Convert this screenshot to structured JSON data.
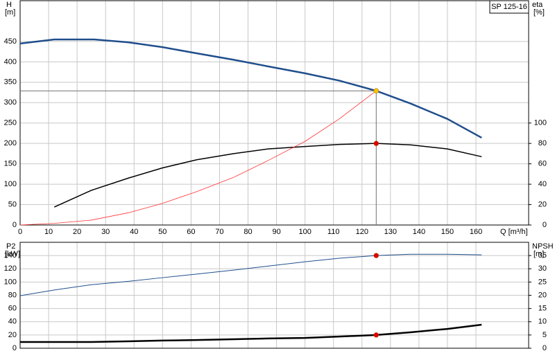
{
  "chart_data": [
    {
      "type": "line",
      "label": "SP 125-16",
      "ylabel": "H",
      "yunit": "[m]",
      "y2label": "eta",
      "y2unit": "[%]",
      "xlabel": "Q [m³/h]",
      "xlim": [
        0,
        178.5
      ],
      "xticks": [
        0,
        10,
        20,
        30,
        40,
        50,
        60,
        70,
        80,
        90,
        100,
        110,
        120,
        130,
        140,
        150,
        160
      ],
      "ylim": [
        0,
        550
      ],
      "yticks": [
        0,
        50,
        100,
        150,
        200,
        250,
        300,
        350,
        400,
        450
      ],
      "y2lim": [
        0,
        220
      ],
      "y2ticks": [
        0,
        20,
        40,
        60,
        80,
        100
      ],
      "grid": true,
      "series": [
        {
          "color": "#1f4e8c",
          "line_width": 2.5,
          "x": [
            0,
            12,
            26,
            38,
            50,
            62,
            75,
            87,
            100,
            112,
            125,
            137,
            150,
            162
          ],
          "values": [
            445,
            455,
            455,
            448,
            436,
            421,
            405,
            389,
            372,
            354,
            329,
            298,
            260,
            214
          ]
        },
        {
          "color": "#000000",
          "line_width": 1.5,
          "axis": "y2",
          "x": [
            12,
            25,
            38,
            50,
            62,
            75,
            87,
            100,
            112,
            125,
            137,
            150,
            162
          ],
          "values": [
            17.6,
            34,
            46,
            56,
            64,
            70,
            74.6,
            77,
            79,
            80,
            78.6,
            74.6,
            67
          ]
        },
        {
          "color": "#ff3030",
          "line_width": 0.8,
          "x": [
            0,
            12,
            25,
            38,
            50,
            62,
            75,
            87,
            100,
            112,
            125
          ],
          "values": [
            0,
            4,
            12,
            30,
            53,
            82,
            117,
            158,
            205,
            260,
            329
          ]
        }
      ],
      "markers": [
        {
          "x": 125,
          "y": 329,
          "color": "#f5c400",
          "guides": true
        },
        {
          "x": 125,
          "y": 80,
          "axis": "y2",
          "color": "#e00000"
        }
      ]
    },
    {
      "type": "line",
      "ylabel": "P2",
      "yunit": "[kW]",
      "y2label": "NPSH",
      "y2unit": "[m]",
      "xlim": [
        0,
        178.5
      ],
      "xticks": [
        0,
        10,
        20,
        30,
        40,
        50,
        60,
        70,
        80,
        90,
        100,
        110,
        120,
        130,
        140,
        150,
        160
      ],
      "ylim": [
        0,
        160
      ],
      "yticks": [
        0,
        20,
        40,
        60,
        80,
        100,
        120,
        140
      ],
      "y2lim": [
        0,
        40
      ],
      "y2ticks": [
        0,
        5,
        10,
        15,
        20,
        25,
        30,
        35
      ],
      "grid": true,
      "series": [
        {
          "color": "#1f4e8c",
          "line_width": 1,
          "x": [
            0,
            12,
            25,
            38,
            50,
            62,
            75,
            87,
            100,
            112,
            125,
            137,
            150,
            162
          ],
          "values": [
            79.4,
            88,
            96,
            101,
            106.6,
            112,
            118,
            124,
            130.6,
            136,
            140,
            142,
            142,
            141
          ]
        },
        {
          "color": "#000000",
          "line_width": 2.5,
          "axis": "y2",
          "x": [
            0,
            12,
            25,
            38,
            50,
            62,
            75,
            87,
            100,
            112,
            125,
            137,
            150,
            162
          ],
          "values": [
            2.35,
            2.35,
            2.35,
            2.6,
            2.9,
            3.1,
            3.4,
            3.7,
            3.9,
            4.4,
            5.0,
            6.0,
            7.3,
            8.9
          ]
        }
      ],
      "markers": [
        {
          "x": 125,
          "y": 140,
          "color": "#e00000"
        },
        {
          "x": 125,
          "y": 5,
          "axis": "y2",
          "color": "#e00000"
        }
      ]
    }
  ]
}
